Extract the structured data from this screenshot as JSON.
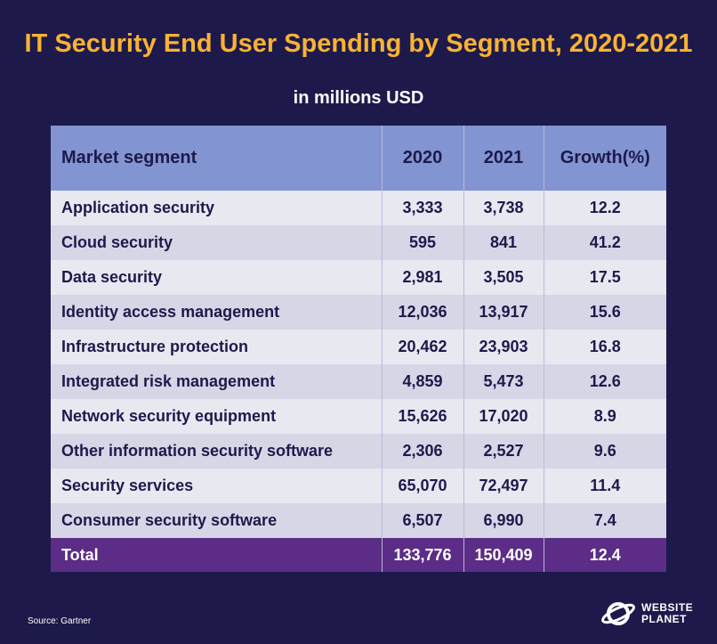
{
  "chart_data": {
    "type": "table",
    "title": "IT Security End User Spending by Segment, 2020-2021",
    "subtitle": "in millions USD",
    "columns": [
      "Market segment",
      "2020",
      "2021",
      "Growth(%)"
    ],
    "rows": [
      [
        "Application security",
        "3,333",
        "3,738",
        "12.2"
      ],
      [
        "Cloud security",
        "595",
        "841",
        "41.2"
      ],
      [
        "Data security",
        "2,981",
        "3,505",
        "17.5"
      ],
      [
        "Identity access management",
        "12,036",
        "13,917",
        "15.6"
      ],
      [
        "Infrastructure protection",
        "20,462",
        "23,903",
        "16.8"
      ],
      [
        "Integrated risk management",
        "4,859",
        "5,473",
        "12.6"
      ],
      [
        "Network security equipment",
        "15,626",
        "17,020",
        "8.9"
      ],
      [
        "Other information security software",
        "2,306",
        "2,527",
        "9.6"
      ],
      [
        "Security services",
        "65,070",
        "72,497",
        "11.4"
      ],
      [
        "Consumer security software",
        "6,507",
        "6,990",
        "7.4"
      ]
    ],
    "total": [
      "Total",
      "133,776",
      "150,409",
      "12.4"
    ]
  },
  "footer": {
    "source": "Source: Gartner",
    "logo_line1": "WEBSITE",
    "logo_line2": "PLANET"
  },
  "colors": {
    "background": "#1d1a4b",
    "title": "#f9b233",
    "header": "#8295d2",
    "row_light": "#e8e8f1",
    "row_dark": "#d6d6e6",
    "total_row": "#5b2d86"
  }
}
